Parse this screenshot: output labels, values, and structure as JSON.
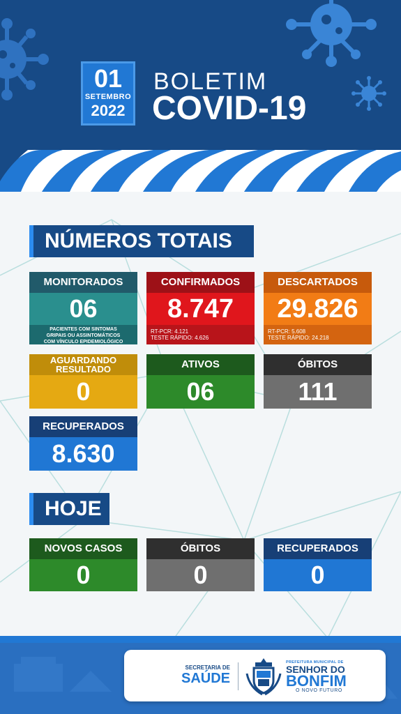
{
  "header": {
    "date_day": "01",
    "date_month": "SETEMBRO",
    "date_year": "2022",
    "title_line1": "BOLETIM",
    "title_line2": "COVID-19"
  },
  "totais": {
    "section_title": "NÚMEROS TOTAIS",
    "monitorados": {
      "label": "MONITORADOS",
      "value": "06",
      "note": [
        "PACIENTES COM SINTOMAS",
        "GRIPAIS OU ASSINTOMÁTICOS",
        "COM VÍNCULO EPIDEMIOLÓGICO"
      ]
    },
    "confirmados": {
      "label": "CONFIRMADOS",
      "value": "8.747",
      "rt_pcr": "RT-PCR: 4.121",
      "teste_rapido": "TESTE RÁPIDO: 4.626"
    },
    "descartados": {
      "label": "DESCARTADOS",
      "value": "29.826",
      "rt_pcr": "RT-PCR: 5.608",
      "teste_rapido": "TESTE RÁPIDO: 24.218"
    },
    "aguardando": {
      "label_line1": "AGUARDANDO",
      "label_line2": "RESULTADO",
      "value": "0"
    },
    "ativos": {
      "label": "ATIVOS",
      "value": "06"
    },
    "obitos": {
      "label": "ÓBITOS",
      "value": "111"
    },
    "recuperados": {
      "label": "RECUPERADOS",
      "value": "8.630"
    }
  },
  "hoje": {
    "section_title": "HOJE",
    "novos_casos": {
      "label": "NOVOS CASOS",
      "value": "0"
    },
    "obitos": {
      "label": "ÓBITOS",
      "value": "0"
    },
    "recuperados": {
      "label": "RECUPERADOS",
      "value": "0"
    }
  },
  "footer": {
    "secretaria_small": "SECRETARIA DE",
    "secretaria_big": "SAÚDE",
    "prefeitura_small": "PREFEITURA MUNICIPAL DE",
    "prefeitura_mid": "SENHOR DO",
    "prefeitura_big": "BONFIM",
    "prefeitura_tagline": "O NOVO FUTURO"
  },
  "colors": {
    "header_bg": "#174a86",
    "accent_blue": "#2178d4",
    "teal": "#2a8f8e",
    "red": "#e0161c",
    "orange": "#f27c15",
    "yellow": "#e5a912",
    "green": "#2d8a2a",
    "gray": "#6f6f6f"
  },
  "icons": [
    "virus-icon",
    "coat-of-arms-icon"
  ]
}
